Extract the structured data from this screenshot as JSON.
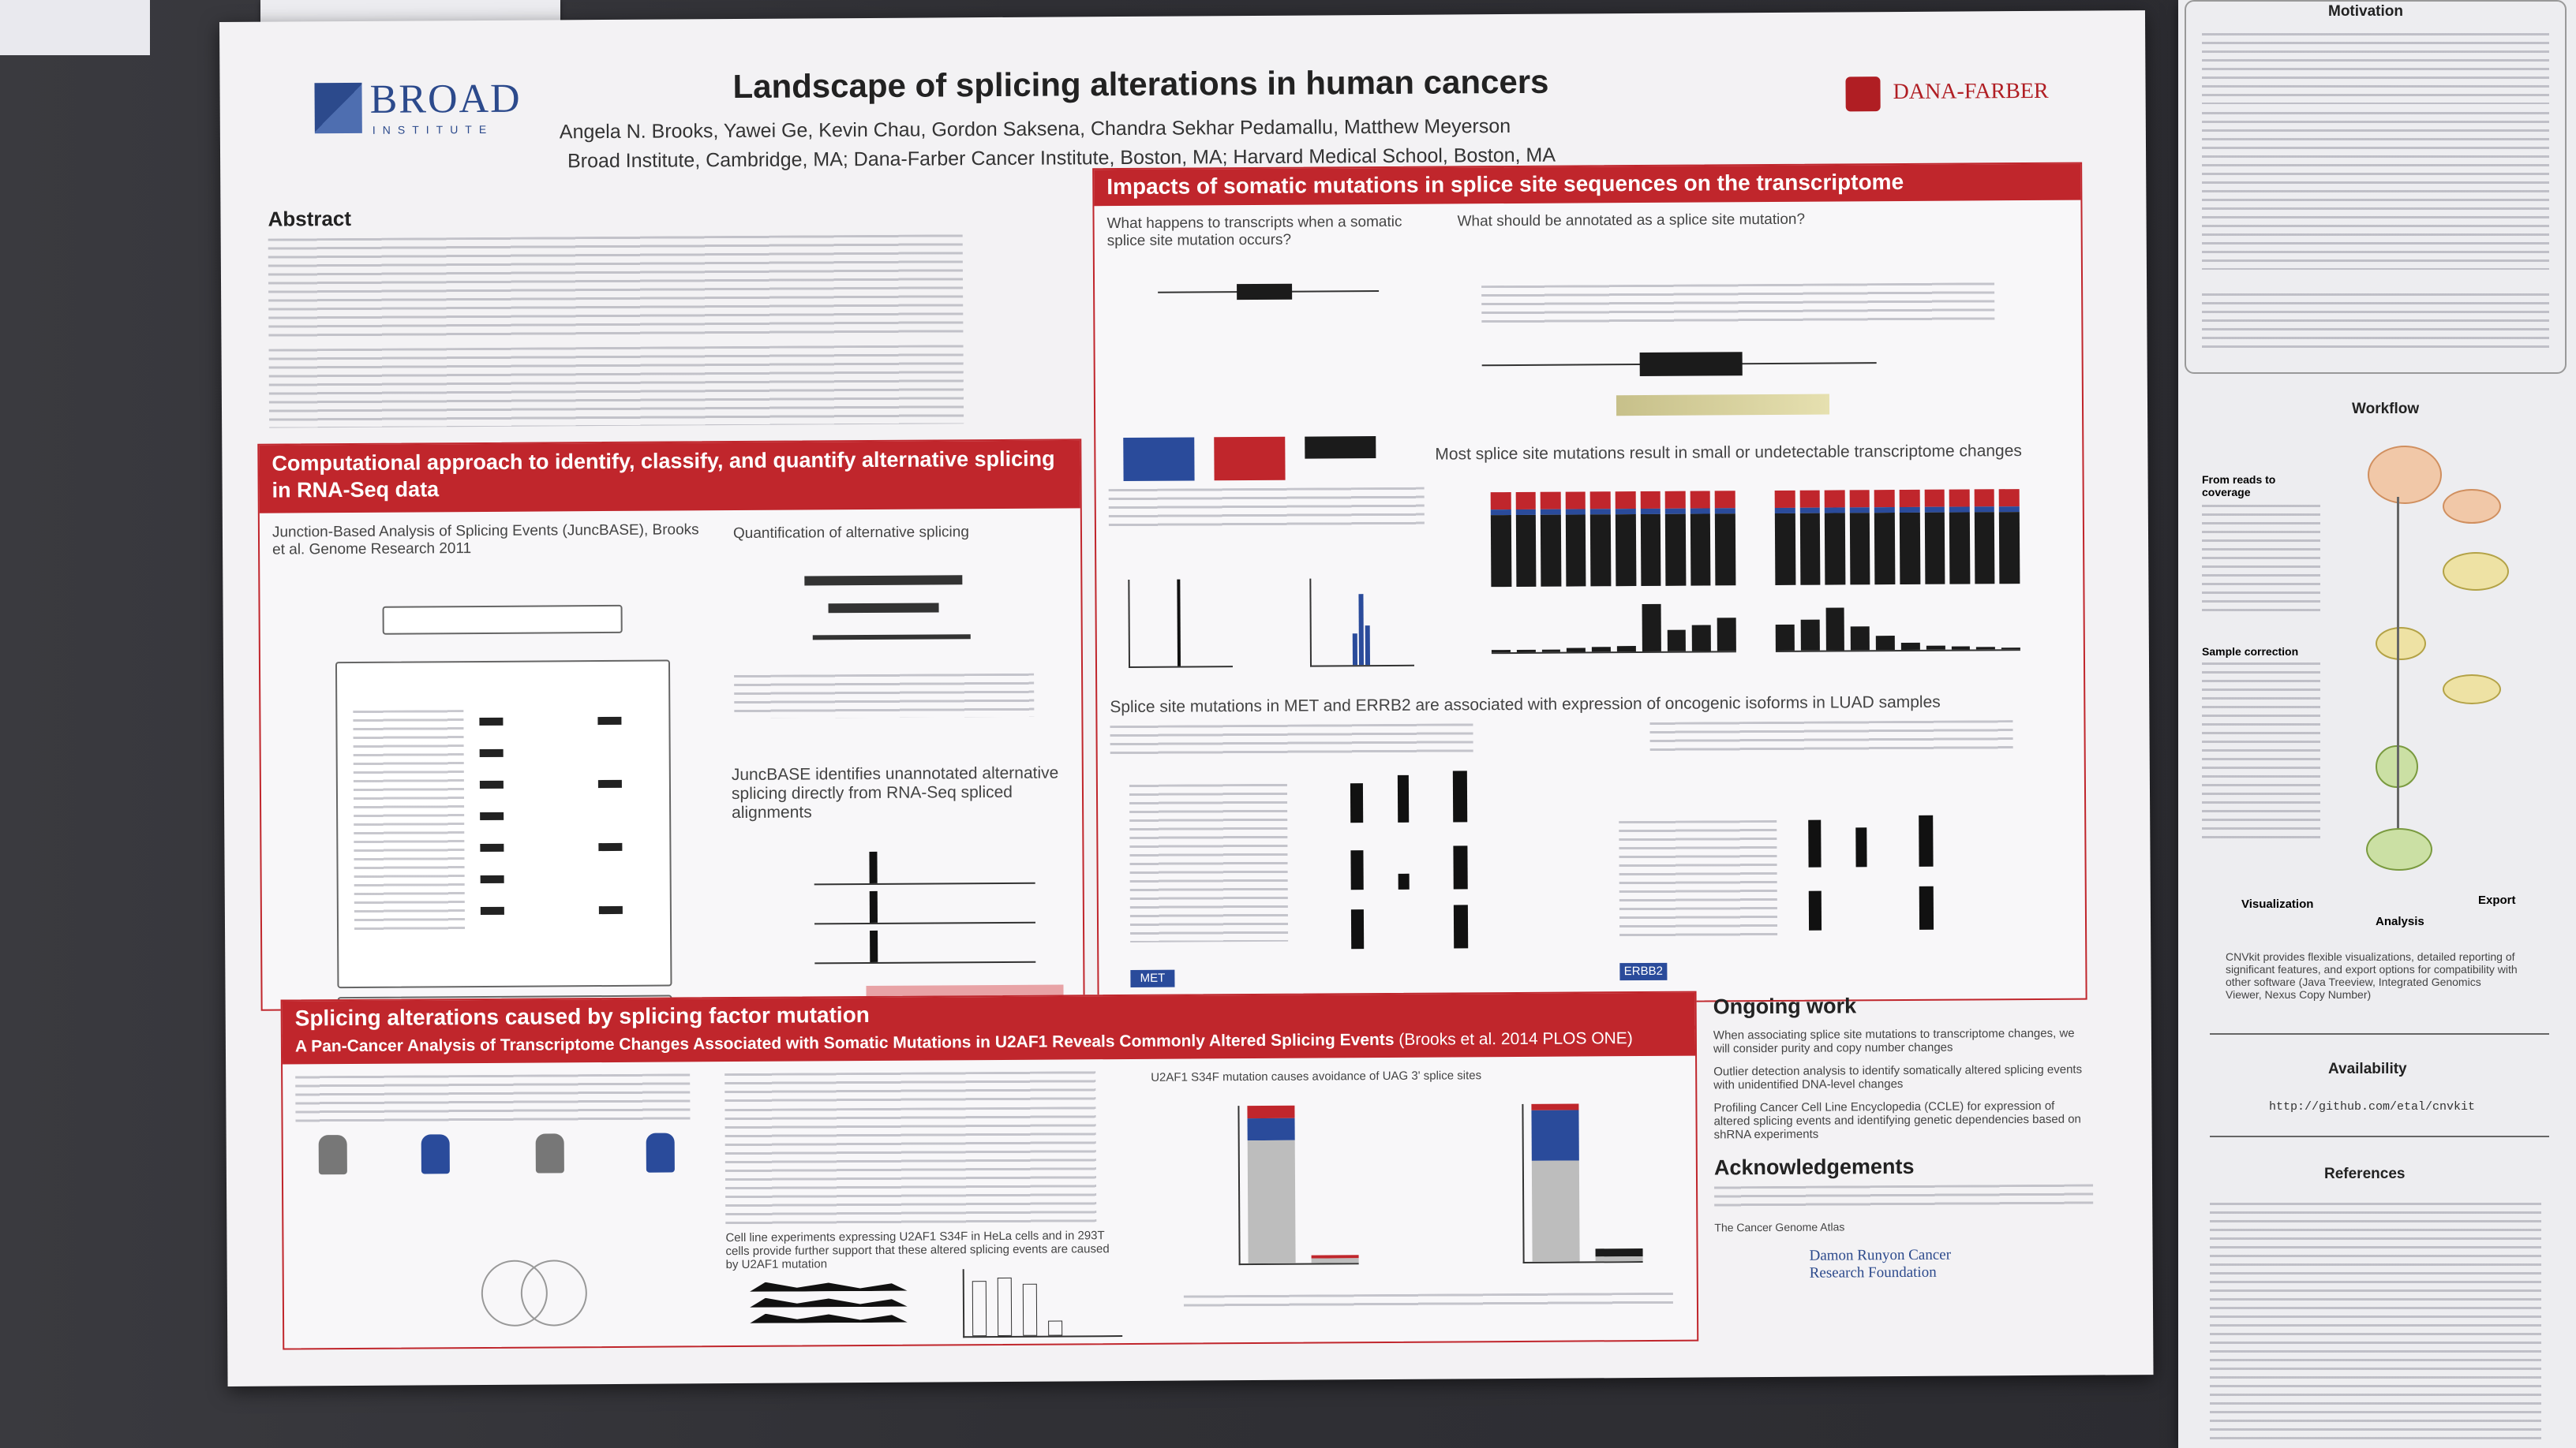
{
  "poster": {
    "title": "Landscape of splicing alterations in human cancers",
    "authors": "Angela N. Brooks, Yawei Ge, Kevin Chau, Gordon Saksena, Chandra Sekhar Pedamallu, Matthew Meyerson",
    "affiliations": "Broad Institute, Cambridge, MA; Dana-Farber Cancer Institute, Boston, MA; Harvard Medical School, Boston, MA",
    "logo_left": "BROAD",
    "logo_left_sub": "INSTITUTE",
    "logo_right": "DANA-FARBER",
    "abstract_heading": "Abstract",
    "computational_heading": "Computational approach to identify, classify, and quantify alternative splicing in RNA-Seq data",
    "junc_caption": "Junction-Based Analysis of Splicing Events (JuncBASE), Brooks et al. Genome Research 2011",
    "quant_caption": "Quantification of alternative splicing",
    "juncbase_note": "JuncBASE identifies unannotated alternative splicing directly from RNA-Seq spliced alignments",
    "impacts_heading": "Impacts of somatic mutations in splice site sequences on the transcriptome",
    "q1": "What happens to transcripts when a somatic splice site mutation occurs?",
    "q2": "What should be annotated as a splice site mutation?",
    "most_changes": "Most splice site mutations result in small or undetectable transcriptome changes",
    "met_erbb2": "Splice site mutations in MET and ERRB2 are associated with expression of oncogenic isoforms in LUAD samples",
    "met_label": "MET",
    "erbb2_label": "ERBB2",
    "splicing_factor_heading": "Splicing alterations caused by splicing factor mutation",
    "pancancer": "A Pan-Cancer Analysis of Transcriptome Changes Associated with Somatic Mutations in U2AF1 Reveals Commonly Altered Splicing Events",
    "pancancer_ref": "(Brooks et al. 2014 PLOS ONE)",
    "u2af1_note": "U2AF1 S34F mutation causes avoidance of UAG 3' splice sites",
    "cell_line_note": "Cell line experiments expressing U2AF1 S34F in HeLa cells and in 293T cells provide further support that these altered splicing events are caused by U2AF1 mutation",
    "ongoing_heading": "Ongoing work",
    "ongoing_items": [
      "When associating splice site mutations to transcriptome changes, we will consider purity and copy number changes",
      "Outlier detection analysis to identify somatically altered splicing events with unidentified DNA-level changes",
      "Profiling Cancer Cell Line Encyclopedia (CCLE) for expression of altered splicing events and identifying genetic dependencies based on shRNA experiments"
    ],
    "ack_heading": "Acknowledgements",
    "tcga": "The Cancer Genome Atlas",
    "damon": "Damon Runyon Cancer Research Foundation"
  },
  "side_poster": {
    "motivation": "Motivation",
    "workflow": "Workflow",
    "from_reads": "From reads to coverage",
    "sample_correction": "Sample correction",
    "visualization": "Visualization",
    "analysis": "Analysis",
    "export": "Export",
    "cnvkit_note": "CNVkit provides flexible visualizations, detailed reporting of significant features, and export options for compatibility with other software (Java Treeview, Integrated Genomics Viewer, Nexus Copy Number)",
    "availability": "Availability",
    "url": "http://github.com/etal/cnvkit",
    "references": "References"
  },
  "colors": {
    "accent_red": "#c0262c",
    "broad_blue": "#2c4a8c",
    "board": "#2f2f33"
  }
}
